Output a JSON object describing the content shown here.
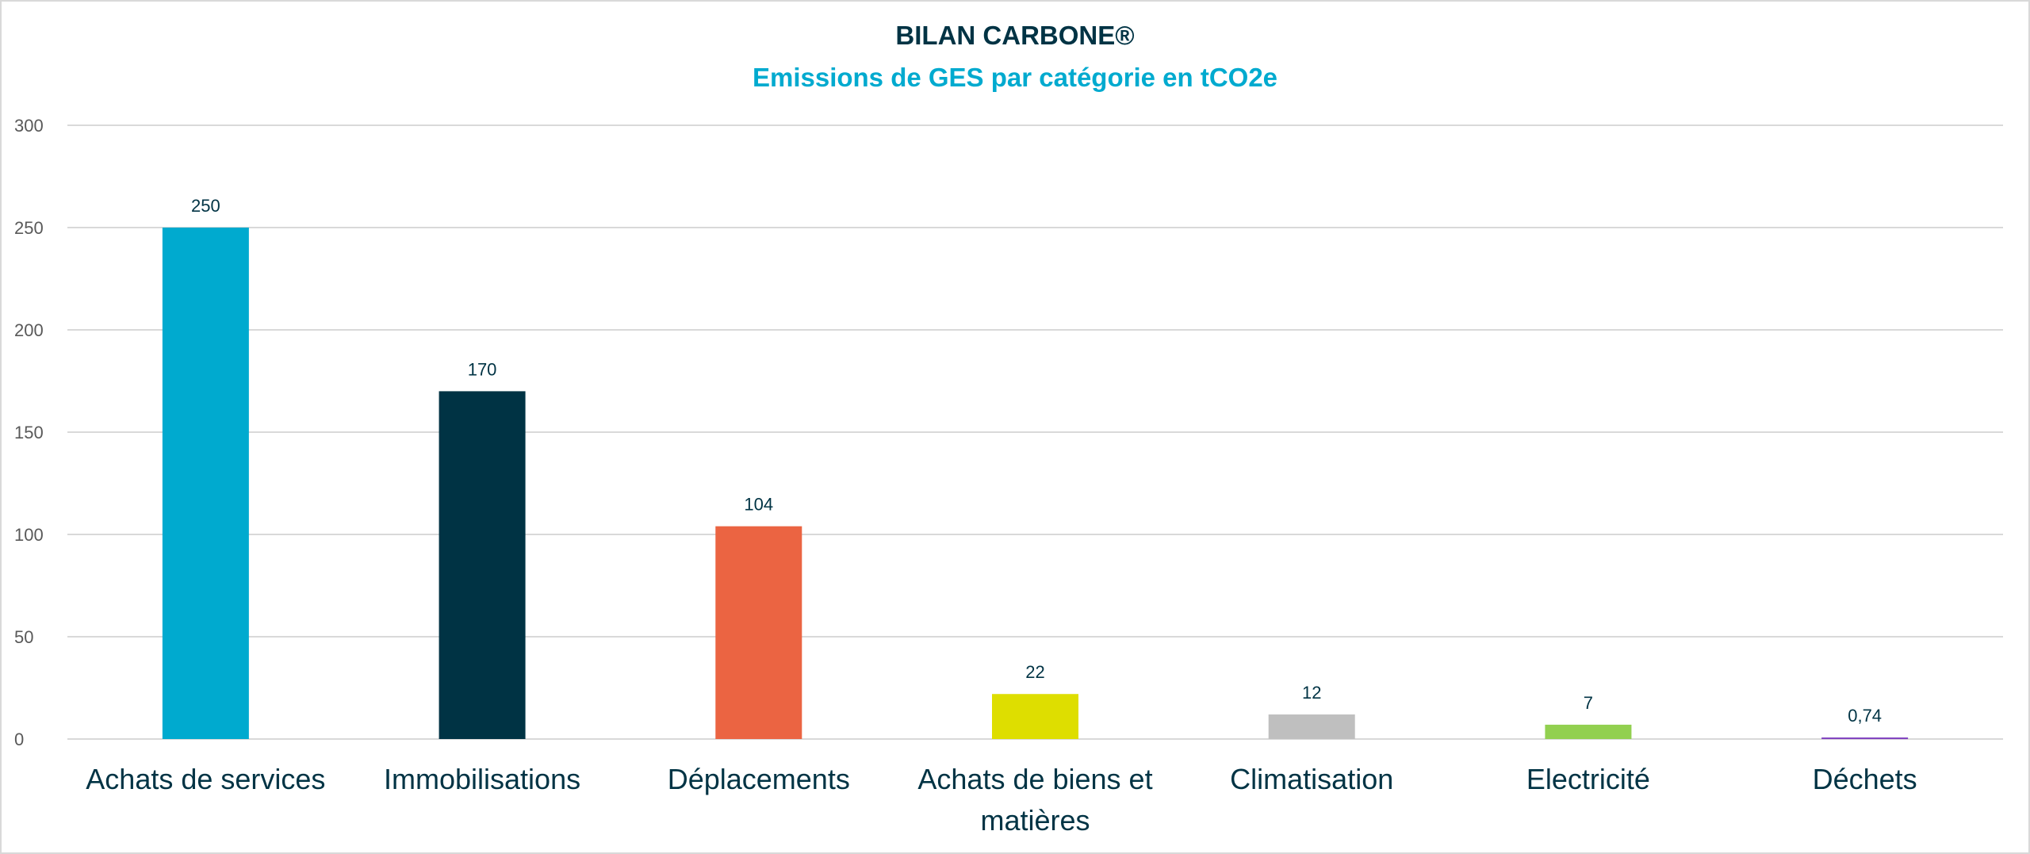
{
  "chart_data": {
    "type": "bar",
    "title": "BILAN CARBONE®",
    "subtitle": "Emissions de GES par catégorie en tCO2e",
    "xlabel": "",
    "ylabel": "",
    "ylim": [
      0,
      300
    ],
    "yticks": [
      0,
      50,
      100,
      150,
      200,
      250,
      300
    ],
    "grid": true,
    "categories": [
      [
        "Achats de services"
      ],
      [
        "Immobilisations"
      ],
      [
        "Déplacements"
      ],
      [
        "Achats de biens et",
        "matières"
      ],
      [
        "Climatisation"
      ],
      [
        "Electricité"
      ],
      [
        "Déchets"
      ]
    ],
    "values": [
      250,
      170,
      104,
      22,
      12,
      7,
      0.74
    ],
    "data_labels": [
      "250",
      "170",
      "104",
      "22",
      "12",
      "7",
      "0,74"
    ],
    "colors": [
      "#00AACF",
      "#003344",
      "#EB6442",
      "#DEDE00",
      "#BFBFBF",
      "#92D050",
      "#7F3FBF"
    ]
  }
}
